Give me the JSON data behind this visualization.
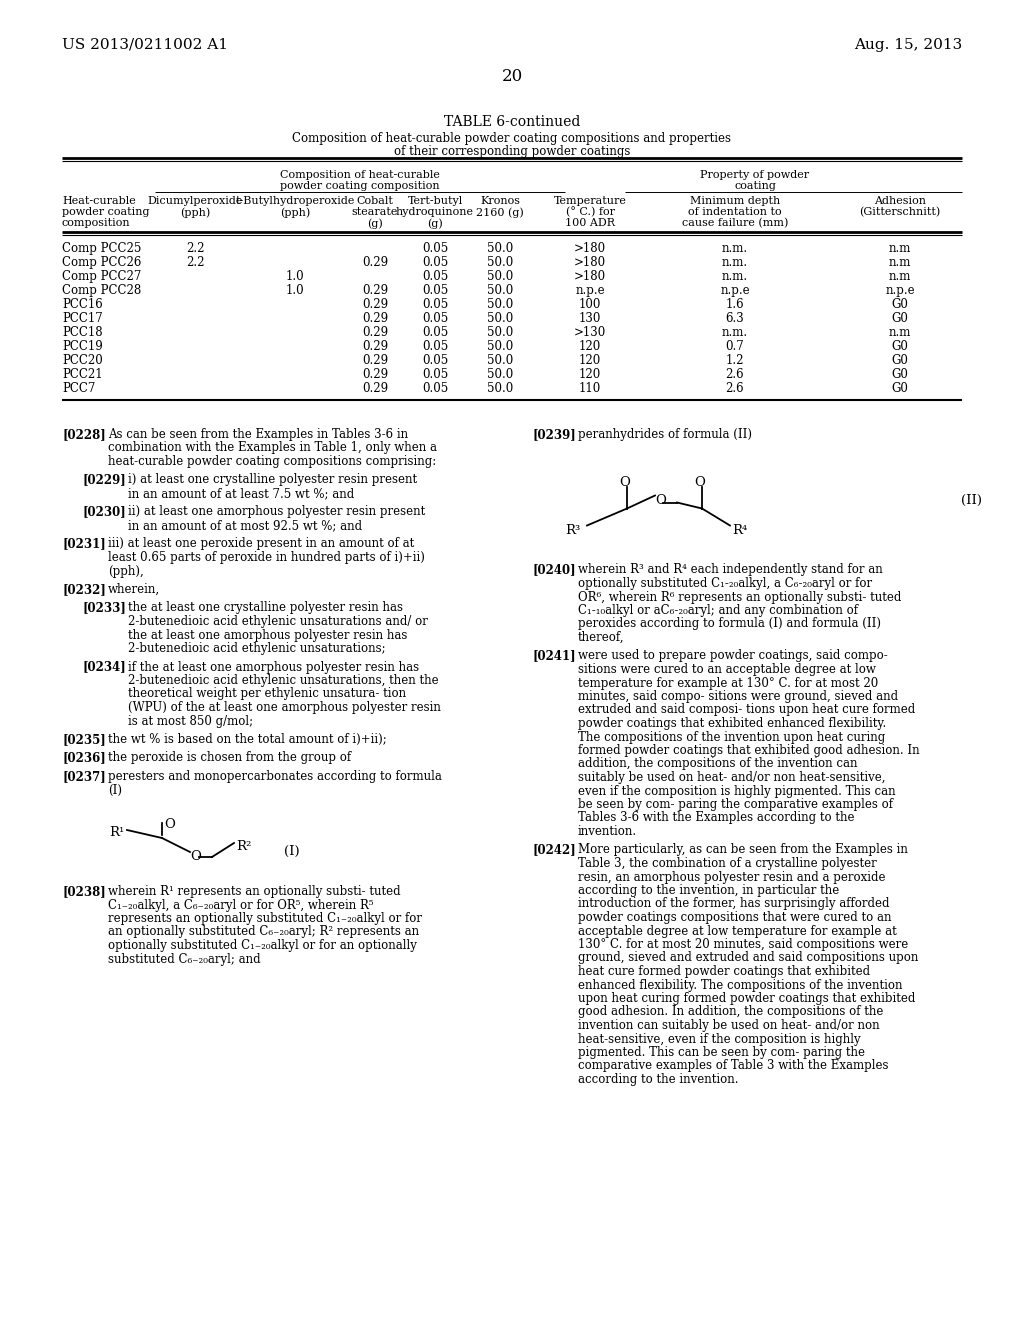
{
  "patent_number": "US 2013/0211002 A1",
  "date": "Aug. 15, 2013",
  "page_number": "20",
  "background_color": "#ffffff"
}
